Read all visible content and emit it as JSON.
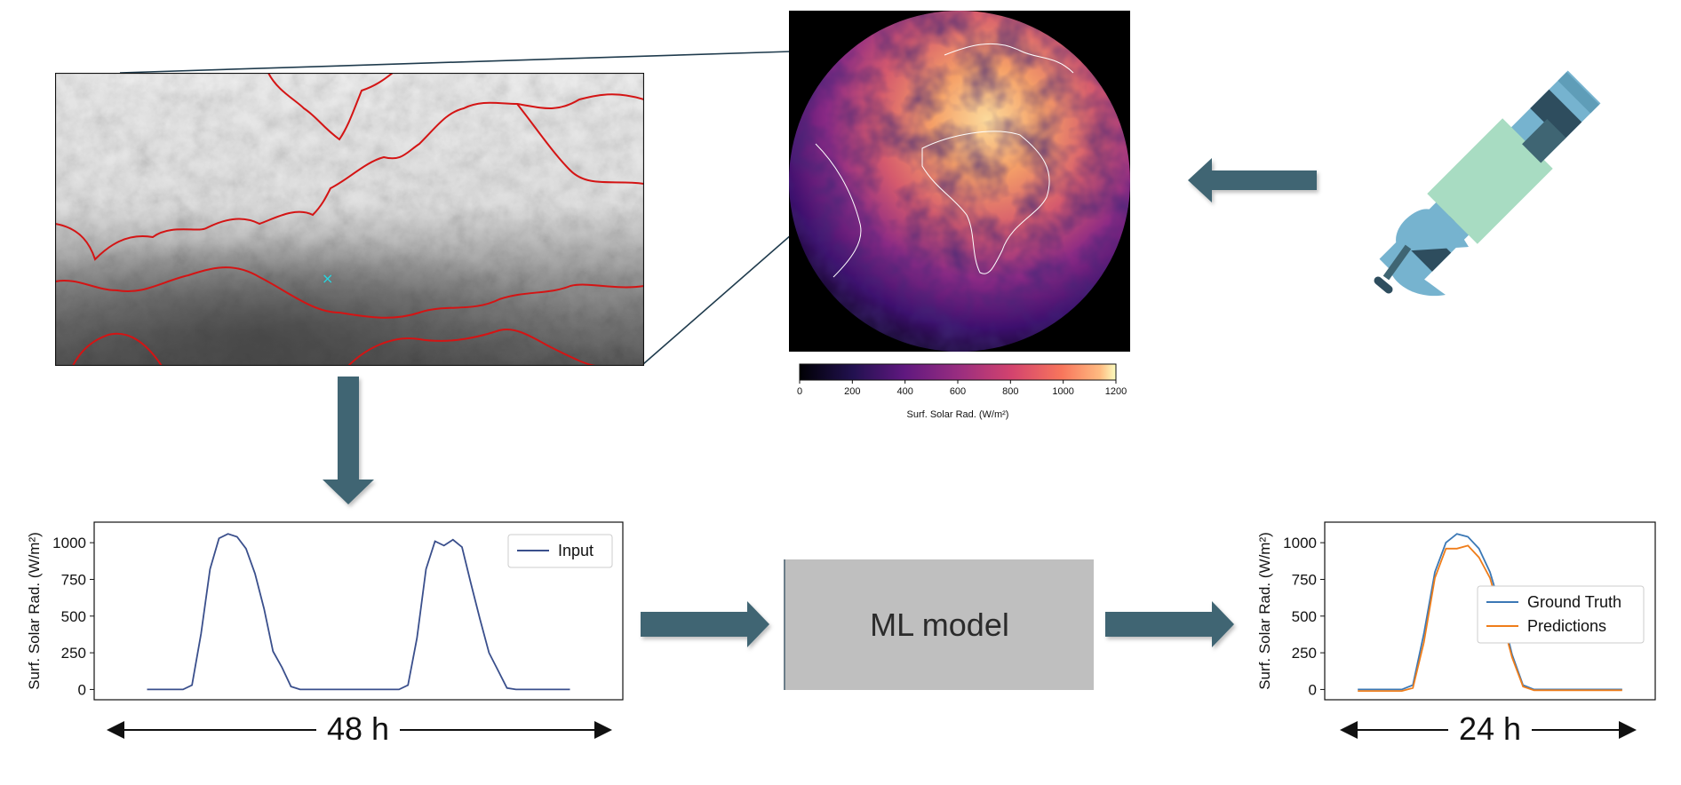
{
  "model": {
    "label": "ML model"
  },
  "durations": {
    "input_window": "48 h",
    "forecast_window": "24 h"
  },
  "colorbar": {
    "label": "Surf. Solar Rad. (W/m²)",
    "ticks": [
      "0",
      "200",
      "400",
      "600",
      "800",
      "1000",
      "1200"
    ],
    "range": [
      0,
      1200
    ],
    "colormap": "magma"
  },
  "colors": {
    "arrow": "#3f6573",
    "border": "#d41414",
    "input_line": "#3a4f8c",
    "truth_line": "#3b78b5",
    "pred_line": "#ef7d1a",
    "satellite_body": "#a8dcc2",
    "satellite_panel_light": "#76b3cf",
    "satellite_panel_dark": "#2e4d5e"
  },
  "chart_data": [
    {
      "type": "line",
      "ylabel": "Surf. Solar Rad. (W/m²)",
      "yticks": [
        "0",
        "250",
        "500",
        "750",
        "1000"
      ],
      "ylim": [
        -70,
        1140
      ],
      "x": [
        0,
        1,
        2,
        3,
        4,
        5,
        6,
        7,
        8,
        9,
        10,
        11,
        12,
        13,
        14,
        15,
        16,
        17,
        18,
        19,
        20,
        21,
        22,
        23,
        24,
        25,
        26,
        27,
        28,
        29,
        30,
        31,
        32,
        33,
        34,
        35,
        36,
        37,
        38,
        39,
        40,
        41,
        42,
        43,
        44,
        45,
        46,
        47
      ],
      "series": [
        {
          "name": "Input",
          "values": [
            0,
            0,
            0,
            0,
            0,
            30,
            380,
            820,
            1030,
            1060,
            1040,
            960,
            790,
            550,
            260,
            150,
            20,
            0,
            0,
            0,
            0,
            0,
            0,
            0,
            0,
            0,
            0,
            0,
            0,
            30,
            350,
            820,
            1010,
            980,
            1020,
            970,
            720,
            480,
            250,
            130,
            10,
            0,
            0,
            0,
            0,
            0,
            0,
            0
          ]
        }
      ],
      "legend": "top-right"
    },
    {
      "type": "line",
      "ylabel": "Surf. Solar Rad. (W/m²)",
      "yticks": [
        "0",
        "250",
        "500",
        "750",
        "1000"
      ],
      "ylim": [
        -70,
        1140
      ],
      "x": [
        0,
        1,
        2,
        3,
        4,
        5,
        6,
        7,
        8,
        9,
        10,
        11,
        12,
        13,
        14,
        15,
        16,
        17,
        18,
        19,
        20,
        21,
        22,
        23,
        24
      ],
      "series": [
        {
          "name": "Ground Truth",
          "values": [
            0,
            0,
            0,
            0,
            0,
            30,
            380,
            800,
            1000,
            1060,
            1040,
            960,
            800,
            550,
            240,
            30,
            0,
            0,
            0,
            0,
            0,
            0,
            0,
            0,
            0
          ]
        },
        {
          "name": "Predictions",
          "values": [
            -10,
            -10,
            -10,
            -10,
            -10,
            10,
            320,
            760,
            960,
            960,
            980,
            900,
            760,
            500,
            220,
            20,
            -5,
            -5,
            -5,
            -5,
            -5,
            -5,
            -5,
            -5,
            -5
          ]
        }
      ],
      "legend": "right"
    }
  ]
}
